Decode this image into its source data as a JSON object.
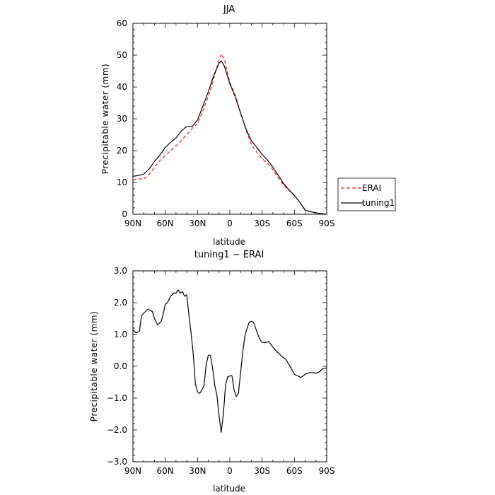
{
  "chart_data": [
    {
      "type": "line",
      "title": "JJA",
      "xlabel": "latitude",
      "ylabel": "Precipitable water (mm)",
      "xlim": [
        90,
        -90
      ],
      "ylim": [
        0,
        60
      ],
      "x_tick_values": [
        90,
        60,
        30,
        0,
        -30,
        -60,
        -90
      ],
      "x_tick_labels": [
        "90N",
        "60N",
        "30N",
        "0",
        "30S",
        "60S",
        "90S"
      ],
      "y_tick_values": [
        0,
        10,
        20,
        30,
        40,
        50,
        60
      ],
      "y_tick_labels": [
        "0",
        "10",
        "20",
        "30",
        "40",
        "50",
        "60"
      ],
      "legend": {
        "placement": "right",
        "entries": [
          "ERAI",
          "tuning1"
        ]
      },
      "colors": {
        "ERAI": "#e8201f",
        "tuning1": "#000000"
      },
      "series": [
        {
          "name": "ERAI",
          "style": "dashed",
          "x": [
            90,
            85,
            80,
            75,
            70,
            65,
            60,
            55,
            50,
            45,
            40,
            35,
            30,
            25,
            20,
            15,
            10,
            8,
            5,
            0,
            -5,
            -10,
            -15,
            -20,
            -25,
            -30,
            -35,
            -40,
            -45,
            -50,
            -55,
            -60,
            -65,
            -70,
            -75,
            -80,
            -85,
            -90
          ],
          "y": [
            10.8,
            11.2,
            11.0,
            12.5,
            14.8,
            16.8,
            18.5,
            20.0,
            21.5,
            23.2,
            25.0,
            27.0,
            28.5,
            32.5,
            37.0,
            42.5,
            48.5,
            50.4,
            48.5,
            41.5,
            37.5,
            32.0,
            26.5,
            22.0,
            19.5,
            17.5,
            16.0,
            14.0,
            11.5,
            9.2,
            7.5,
            5.8,
            3.8,
            1.5,
            0.8,
            0.5,
            0.2,
            0.0
          ]
        },
        {
          "name": "tuning1",
          "style": "solid",
          "x": [
            90,
            85,
            80,
            75,
            70,
            65,
            60,
            55,
            50,
            45,
            40,
            35,
            30,
            25,
            20,
            15,
            10,
            8,
            5,
            0,
            -5,
            -10,
            -15,
            -20,
            -25,
            -30,
            -35,
            -40,
            -45,
            -50,
            -55,
            -60,
            -65,
            -70,
            -75,
            -80,
            -85,
            -90
          ],
          "y": [
            11.9,
            12.2,
            12.6,
            14.2,
            16.6,
            18.6,
            21.0,
            22.6,
            24.0,
            26.2,
            27.6,
            27.6,
            29.6,
            34.0,
            38.5,
            43.6,
            47.5,
            48.2,
            46.5,
            41.0,
            37.0,
            31.8,
            26.8,
            23.2,
            21.0,
            18.8,
            17.0,
            14.8,
            12.2,
            9.6,
            7.7,
            5.9,
            3.8,
            1.2,
            0.8,
            0.5,
            0.2,
            0.0
          ]
        }
      ]
    },
    {
      "type": "line",
      "title": "tuning1 − ERAI",
      "xlabel": "latitude",
      "ylabel": "Precipitable water (mm)",
      "xlim": [
        90,
        -90
      ],
      "ylim": [
        -3,
        3
      ],
      "x_tick_values": [
        90,
        60,
        30,
        0,
        -30,
        -60,
        -90
      ],
      "x_tick_labels": [
        "90N",
        "60N",
        "30N",
        "0",
        "30S",
        "60S",
        "90S"
      ],
      "y_tick_values": [
        3,
        2,
        1,
        0,
        -1,
        -2,
        -3
      ],
      "y_tick_labels": [
        "3.0",
        "2.0",
        "1.0",
        "0.0",
        "−1.0",
        "−2.0",
        "−3.0"
      ],
      "series": [
        {
          "name": "tuning1 − ERAI",
          "style": "solid",
          "color": "#000000",
          "x": [
            90,
            87,
            84,
            82,
            79,
            76,
            72,
            70,
            67,
            64,
            62,
            60,
            58,
            55,
            52,
            50,
            48,
            46,
            44,
            42,
            40,
            38,
            36,
            34,
            32,
            30,
            28,
            26,
            24,
            22,
            20,
            18,
            16,
            14,
            12,
            10,
            8,
            6,
            4,
            2,
            0,
            -2,
            -4,
            -6,
            -8,
            -10,
            -12,
            -14,
            -16,
            -18,
            -20,
            -22,
            -24,
            -26,
            -28,
            -30,
            -33,
            -36,
            -38,
            -40,
            -44,
            -48,
            -52,
            -56,
            -60,
            -63,
            -66,
            -68,
            -70,
            -72,
            -75,
            -78,
            -80,
            -82,
            -84,
            -86,
            -88,
            -90
          ],
          "y": [
            1.15,
            1.05,
            1.1,
            1.6,
            1.7,
            1.8,
            1.72,
            1.5,
            1.3,
            1.4,
            1.62,
            1.95,
            2.0,
            2.2,
            2.3,
            2.3,
            2.4,
            2.3,
            2.35,
            2.2,
            2.25,
            1.6,
            1.05,
            0.4,
            -0.55,
            -0.8,
            -0.85,
            -0.75,
            -0.6,
            0.05,
            0.35,
            0.35,
            -0.05,
            -0.6,
            -0.9,
            -1.55,
            -2.08,
            -1.5,
            -0.6,
            -0.33,
            -0.3,
            -0.3,
            -0.75,
            -0.95,
            -0.85,
            -0.2,
            0.45,
            0.95,
            1.2,
            1.38,
            1.42,
            1.38,
            1.2,
            1.0,
            0.85,
            0.75,
            0.75,
            0.78,
            0.7,
            0.6,
            0.45,
            0.32,
            0.22,
            0.0,
            -0.25,
            -0.3,
            -0.35,
            -0.3,
            -0.25,
            -0.22,
            -0.2,
            -0.2,
            -0.22,
            -0.2,
            -0.15,
            -0.08,
            -0.06,
            -0.05
          ]
        }
      ]
    }
  ]
}
